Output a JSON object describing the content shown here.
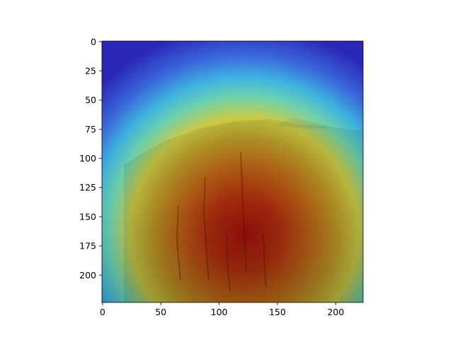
{
  "chart_data": {
    "type": "heatmap",
    "title": "",
    "xlabel": "",
    "ylabel": "",
    "xlim": [
      0,
      224
    ],
    "ylim": [
      224,
      0
    ],
    "x_ticks": [
      0,
      50,
      100,
      150,
      200
    ],
    "y_ticks": [
      0,
      25,
      50,
      75,
      100,
      125,
      150,
      175,
      200
    ],
    "colormap": "jet",
    "overlay_description_colors": {
      "low": "#2a2fd0",
      "mid_low": "#3ad0e8",
      "mid": "#d8d24a",
      "mid_high": "#c88a1e",
      "high": "#b0200f"
    },
    "heat_peak": {
      "x": 130,
      "y": 165
    },
    "grid": false,
    "legend": "none"
  }
}
